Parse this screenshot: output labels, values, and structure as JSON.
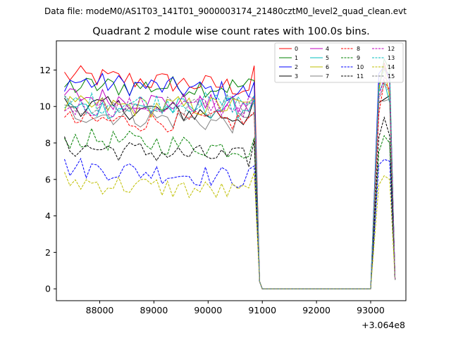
{
  "chart_data": {
    "type": "line",
    "suptitle": "Data file: modeM0/AS1T03_141T01_9000003174_21480cztM0_level2_quad_clean.evt",
    "title": "Quadrant 2 module wise count rates with 100.0s bins.",
    "xlabel": "",
    "ylabel": "",
    "x_offset_label": "+3.064e8",
    "x_ticks": [
      88000,
      89000,
      90000,
      91000,
      92000,
      93000
    ],
    "x_tick_labels": [
      "88000",
      "89000",
      "90000",
      "91000",
      "92000",
      "93000"
    ],
    "y_ticks": [
      0,
      2,
      4,
      6,
      8,
      10,
      12
    ],
    "y_tick_labels": [
      "0",
      "2",
      "4",
      "6",
      "8",
      "10",
      "12"
    ],
    "xlim": [
      87200,
      93650
    ],
    "ylim": [
      -0.65,
      13.6
    ],
    "legend_position": "top-right",
    "x_start": 87350,
    "x_step": 100,
    "series": [
      {
        "name": "0",
        "color": "#ff0000",
        "style": "solid",
        "base": 11.7,
        "pattern": "decline",
        "late": [
          0.4,
          10.9,
          12.4,
          11.4,
          0.5
        ]
      },
      {
        "name": "1",
        "color": "#008000",
        "style": "solid",
        "base": 11.1,
        "pattern": "flat",
        "late": [
          0.4,
          10.9,
          12.6,
          12.0,
          0.5
        ]
      },
      {
        "name": "2",
        "color": "#0000ff",
        "style": "solid",
        "base": 11.4,
        "pattern": "decline",
        "late": [
          0.4,
          11.8,
          12.2,
          11.4,
          0.5
        ]
      },
      {
        "name": "3",
        "color": "#000000",
        "style": "solid",
        "base": 10.1,
        "pattern": "decline",
        "late": [
          0.4,
          10.2,
          10.4,
          10.6,
          0.5
        ]
      },
      {
        "name": "4",
        "color": "#bf00bf",
        "style": "solid",
        "base": 10.6,
        "pattern": "decline",
        "late": [
          0.4,
          11.2,
          12.1,
          11.6,
          0.5
        ]
      },
      {
        "name": "5",
        "color": "#00bfbf",
        "style": "solid",
        "base": 9.9,
        "pattern": "flat",
        "late": [
          0.4,
          10.8,
          11.4,
          10.2,
          0.5
        ]
      },
      {
        "name": "6",
        "color": "#bfbf00",
        "style": "solid",
        "base": 10.0,
        "pattern": "flat",
        "late": [
          0.4,
          11.0,
          12.2,
          10.5,
          0.5
        ]
      },
      {
        "name": "7",
        "color": "#808080",
        "style": "solid",
        "base": 9.7,
        "pattern": "decline",
        "late": [
          0.4,
          10.3,
          10.3,
          10.4,
          0.5
        ]
      },
      {
        "name": "8",
        "color": "#ff0000",
        "style": "dashed",
        "base": 9.2,
        "pattern": "flat",
        "late": [
          0.4,
          9.6,
          11.4,
          10.9,
          0.5
        ]
      },
      {
        "name": "9",
        "color": "#008000",
        "style": "dashed",
        "base": 8.3,
        "pattern": "decline",
        "late": [
          0.4,
          7.5,
          8.4,
          8.0,
          0.5
        ]
      },
      {
        "name": "10",
        "color": "#0000ff",
        "style": "dashed",
        "base": 6.7,
        "pattern": "decline",
        "late": [
          0.4,
          6.8,
          7.1,
          7.0,
          0.5
        ]
      },
      {
        "name": "11",
        "color": "#000000",
        "style": "dashed",
        "base": 7.8,
        "pattern": "decline",
        "late": [
          0.4,
          8.3,
          9.4,
          8.4,
          0.5
        ]
      },
      {
        "name": "12",
        "color": "#bf00bf",
        "style": "dashed",
        "base": 10.0,
        "pattern": "flat",
        "late": [
          0.4,
          10.5,
          11.6,
          11.3,
          0.5
        ]
      },
      {
        "name": "13",
        "color": "#00bfbf",
        "style": "dashed",
        "base": 10.2,
        "pattern": "flat",
        "late": [
          0.4,
          11.2,
          12.0,
          11.8,
          0.5
        ]
      },
      {
        "name": "14",
        "color": "#bfbf00",
        "style": "dashed",
        "base": 5.9,
        "pattern": "decline",
        "late": [
          0.4,
          5.7,
          6.2,
          6.0,
          0.5
        ]
      },
      {
        "name": "15",
        "color": "#808080",
        "style": "dashed",
        "base": 10.0,
        "pattern": "flat",
        "late": [
          0.4,
          10.4,
          11.2,
          10.8,
          0.5
        ]
      }
    ],
    "transition": {
      "gap_start": 90950,
      "gap_end": 93050,
      "gap_value": 0.0,
      "drop_points": [
        90850,
        90950
      ]
    }
  }
}
